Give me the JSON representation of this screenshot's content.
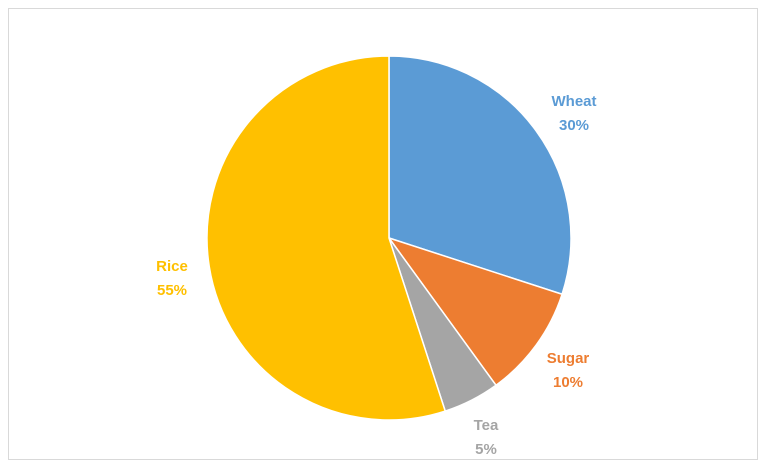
{
  "chart_data": {
    "type": "pie",
    "title": "",
    "categories": [
      "Wheat",
      "Sugar",
      "Tea",
      "Rice"
    ],
    "values": [
      30,
      10,
      5,
      55
    ],
    "value_labels": [
      "30%",
      "10%",
      "5%",
      "55%"
    ],
    "colors": [
      "#5B9BD5",
      "#ED7D31",
      "#A5A5A5",
      "#FFC000"
    ],
    "start_angle_deg": 0,
    "direction": "clockwise",
    "legend": "none",
    "data_labels": "outside"
  }
}
